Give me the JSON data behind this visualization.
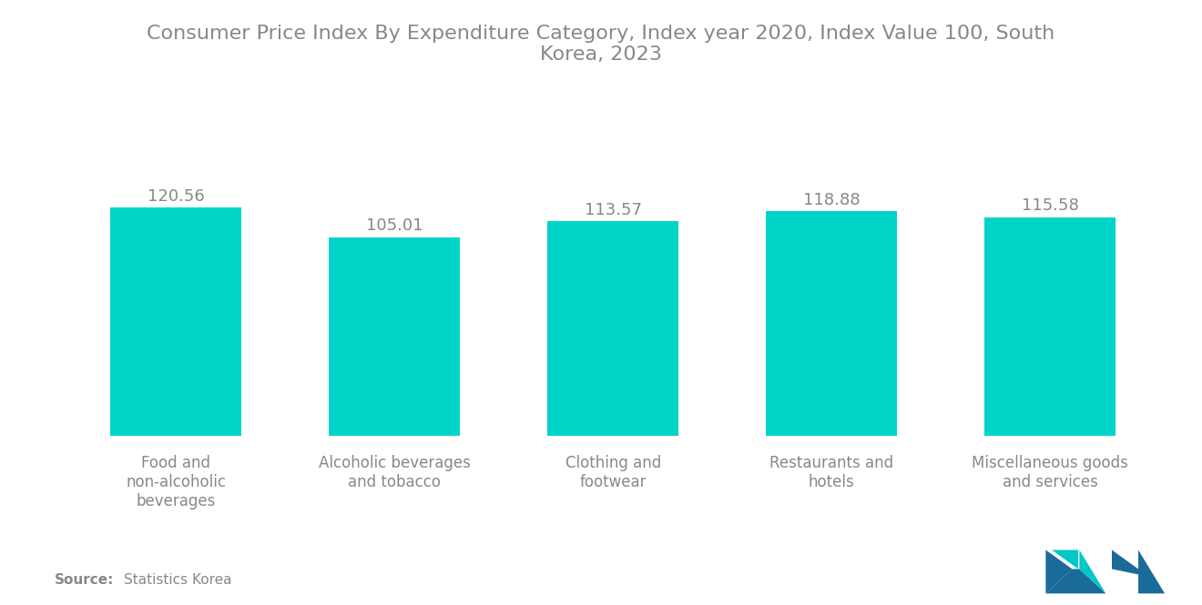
{
  "title": "Consumer Price Index By Expenditure Category, Index year 2020, Index Value 100, South\nKorea, 2023",
  "categories": [
    "Food and\nnon-alcoholic\nbeverages",
    "Alcoholic beverages\nand tobacco",
    "Clothing and\nfootwear",
    "Restaurants and\nhotels",
    "Miscellaneous goods\nand services"
  ],
  "values": [
    120.56,
    105.01,
    113.57,
    118.88,
    115.58
  ],
  "bar_color": "#00D4C8",
  "background_color": "#ffffff",
  "title_color": "#888888",
  "label_color": "#888888",
  "value_color": "#888888",
  "source_bold": "Source:",
  "source_text": "Statistics Korea",
  "title_fontsize": 16,
  "label_fontsize": 12,
  "value_fontsize": 13,
  "source_fontsize": 11,
  "ylim": [
    0,
    160
  ],
  "bar_width": 0.6,
  "logo_color_dark": "#1a6b9a",
  "logo_color_light": "#00C8C8"
}
